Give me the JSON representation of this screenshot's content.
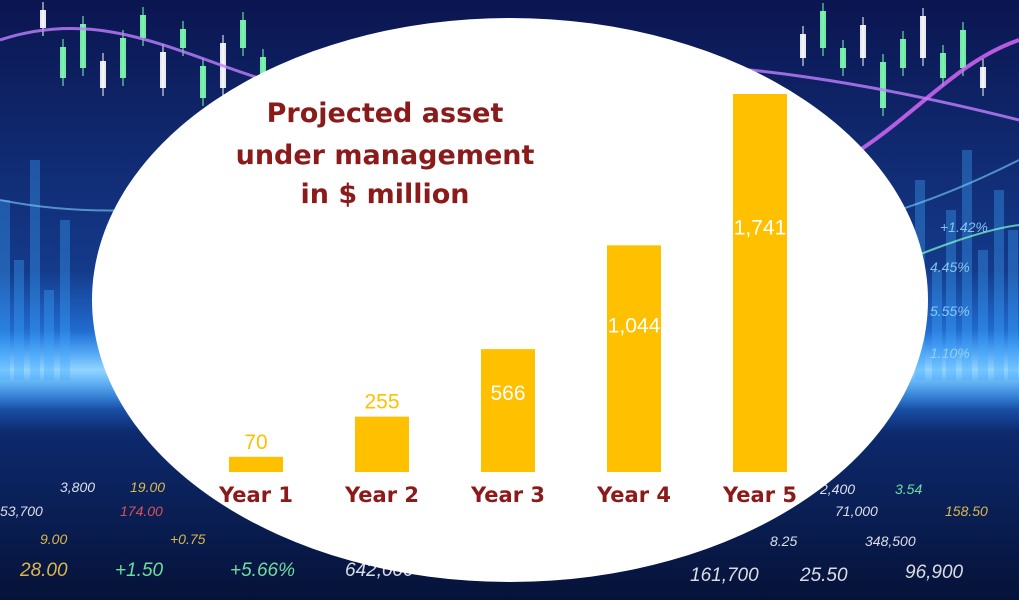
{
  "chart_data": {
    "type": "bar",
    "title_lines": [
      "Projected asset",
      "under management",
      "in $ million"
    ],
    "categories": [
      "Year 1",
      "Year 2",
      "Year 3",
      "Year 4",
      "Year 5"
    ],
    "values": [
      70,
      255,
      566,
      1044,
      1741
    ],
    "data_labels": [
      "70",
      "255",
      "566",
      "1,044",
      "1,741"
    ],
    "ylim": [
      0,
      1741
    ],
    "grid": false,
    "bar_color": "#ffc000",
    "label_color_outside": "#ffc000",
    "label_color_inside": "#ffffff",
    "title_color": "#8b1a1a",
    "category_label_color": "#8b1a1a"
  },
  "background": {
    "ticker_numbers": [
      "19.00",
      "174.00",
      "9.00",
      "+0.75",
      "28.00",
      "+1.50",
      "+5.66%",
      "642,000",
      "161,700",
      "25.50",
      "96,900",
      "8.25",
      "348,500",
      "71,000",
      "158.50",
      "2,400",
      "3.54",
      "+1.42%",
      "4.45%",
      "5.55%",
      "1.10%",
      "3,800",
      "53,700"
    ],
    "primary_color": "#0a1a4a",
    "glow_color": "#2a8cff"
  }
}
